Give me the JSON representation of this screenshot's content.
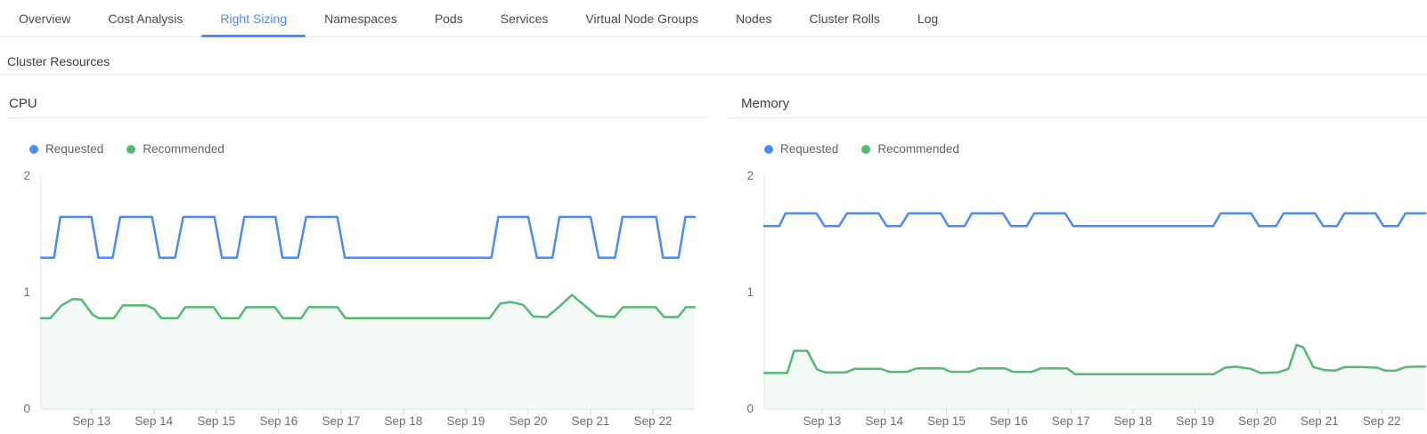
{
  "tabs": [
    {
      "label": "Overview",
      "active": false
    },
    {
      "label": "Cost Analysis",
      "active": false
    },
    {
      "label": "Right Sizing",
      "active": true
    },
    {
      "label": "Namespaces",
      "active": false
    },
    {
      "label": "Pods",
      "active": false
    },
    {
      "label": "Services",
      "active": false
    },
    {
      "label": "Virtual Node Groups",
      "active": false
    },
    {
      "label": "Nodes",
      "active": false
    },
    {
      "label": "Cluster Rolls",
      "active": false
    },
    {
      "label": "Log",
      "active": false
    }
  ],
  "section": {
    "title": "Cluster Resources"
  },
  "colors": {
    "accent_blue": "#4c8bf5",
    "series_blue": "#4c8bf5",
    "series_green": "#55b874",
    "green_area_fill": "rgba(85,184,116,0.07)",
    "axis_line": "#e2e5e9",
    "tick_mark": "#cbcfd4",
    "tick_label": "#6e6e6e",
    "active_tab_text": "#4c8bf5",
    "inactive_tab_text": "#4a4a4a"
  },
  "chart_data": [
    {
      "type": "line",
      "title": "CPU",
      "xlabel": "",
      "ylabel": "",
      "ylim": [
        0,
        2
      ],
      "yticks": [
        0,
        1,
        2
      ],
      "grid": false,
      "legend_position": "top-left",
      "x_domain": [
        12.19,
        22.67
      ],
      "xticks": [
        {
          "day": 13,
          "label": "Sep 13"
        },
        {
          "day": 14,
          "label": "Sep 14"
        },
        {
          "day": 15,
          "label": "Sep 15"
        },
        {
          "day": 16,
          "label": "Sep 16"
        },
        {
          "day": 17,
          "label": "Sep 17"
        },
        {
          "day": 18,
          "label": "Sep 18"
        },
        {
          "day": 19,
          "label": "Sep 19"
        },
        {
          "day": 20,
          "label": "Sep 20"
        },
        {
          "day": 21,
          "label": "Sep 21"
        },
        {
          "day": 22,
          "label": "Sep 22"
        }
      ],
      "series": [
        {
          "name": "Requested",
          "color": "#4c8bf5",
          "points": [
            [
              12.19,
              1.3
            ],
            [
              12.4,
              1.3
            ],
            [
              12.5,
              1.65
            ],
            [
              13.0,
              1.65
            ],
            [
              13.11,
              1.3
            ],
            [
              13.34,
              1.3
            ],
            [
              13.46,
              1.65
            ],
            [
              13.97,
              1.65
            ],
            [
              14.09,
              1.3
            ],
            [
              14.34,
              1.3
            ],
            [
              14.47,
              1.65
            ],
            [
              14.97,
              1.65
            ],
            [
              15.09,
              1.3
            ],
            [
              15.33,
              1.3
            ],
            [
              15.45,
              1.65
            ],
            [
              15.95,
              1.65
            ],
            [
              16.06,
              1.3
            ],
            [
              16.31,
              1.3
            ],
            [
              16.44,
              1.65
            ],
            [
              16.94,
              1.65
            ],
            [
              17.06,
              1.3
            ],
            [
              19.41,
              1.3
            ],
            [
              19.52,
              1.65
            ],
            [
              20.0,
              1.65
            ],
            [
              20.14,
              1.3
            ],
            [
              20.39,
              1.3
            ],
            [
              20.5,
              1.65
            ],
            [
              21.0,
              1.65
            ],
            [
              21.13,
              1.3
            ],
            [
              21.39,
              1.3
            ],
            [
              21.51,
              1.65
            ],
            [
              22.05,
              1.65
            ],
            [
              22.16,
              1.3
            ],
            [
              22.41,
              1.3
            ],
            [
              22.52,
              1.65
            ],
            [
              22.67,
              1.65
            ]
          ]
        },
        {
          "name": "Recommended",
          "color": "#55b874",
          "area_fill": "rgba(85,184,116,0.07)",
          "points": [
            [
              12.19,
              0.78
            ],
            [
              12.34,
              0.78
            ],
            [
              12.52,
              0.89
            ],
            [
              12.7,
              0.945
            ],
            [
              12.84,
              0.94
            ],
            [
              13.02,
              0.81
            ],
            [
              13.12,
              0.78
            ],
            [
              13.36,
              0.78
            ],
            [
              13.5,
              0.89
            ],
            [
              13.88,
              0.89
            ],
            [
              14.0,
              0.86
            ],
            [
              14.12,
              0.78
            ],
            [
              14.38,
              0.78
            ],
            [
              14.5,
              0.875
            ],
            [
              14.96,
              0.875
            ],
            [
              15.08,
              0.78
            ],
            [
              15.36,
              0.78
            ],
            [
              15.48,
              0.875
            ],
            [
              15.94,
              0.875
            ],
            [
              16.07,
              0.78
            ],
            [
              16.36,
              0.78
            ],
            [
              16.48,
              0.875
            ],
            [
              16.94,
              0.875
            ],
            [
              17.07,
              0.78
            ],
            [
              19.38,
              0.78
            ],
            [
              19.55,
              0.905
            ],
            [
              19.72,
              0.92
            ],
            [
              19.92,
              0.895
            ],
            [
              20.08,
              0.795
            ],
            [
              20.3,
              0.79
            ],
            [
              20.52,
              0.89
            ],
            [
              20.7,
              0.98
            ],
            [
              20.88,
              0.9
            ],
            [
              21.1,
              0.8
            ],
            [
              21.38,
              0.79
            ],
            [
              21.52,
              0.875
            ],
            [
              22.04,
              0.875
            ],
            [
              22.18,
              0.79
            ],
            [
              22.4,
              0.79
            ],
            [
              22.53,
              0.875
            ],
            [
              22.67,
              0.875
            ]
          ]
        }
      ]
    },
    {
      "type": "line",
      "title": "Memory",
      "xlabel": "",
      "ylabel": "",
      "ylim": [
        0,
        2
      ],
      "yticks": [
        0,
        1,
        2
      ],
      "grid": false,
      "legend_position": "top-left",
      "x_domain": [
        12.07,
        22.7
      ],
      "xticks": [
        {
          "day": 13,
          "label": "Sep 13"
        },
        {
          "day": 14,
          "label": "Sep 14"
        },
        {
          "day": 15,
          "label": "Sep 15"
        },
        {
          "day": 16,
          "label": "Sep 16"
        },
        {
          "day": 17,
          "label": "Sep 17"
        },
        {
          "day": 18,
          "label": "Sep 18"
        },
        {
          "day": 19,
          "label": "Sep 19"
        },
        {
          "day": 20,
          "label": "Sep 20"
        },
        {
          "day": 21,
          "label": "Sep 21"
        },
        {
          "day": 22,
          "label": "Sep 22"
        }
      ],
      "series": [
        {
          "name": "Requested",
          "color": "#4c8bf5",
          "points": [
            [
              12.07,
              1.57
            ],
            [
              12.31,
              1.57
            ],
            [
              12.41,
              1.68
            ],
            [
              12.91,
              1.68
            ],
            [
              13.04,
              1.57
            ],
            [
              13.27,
              1.57
            ],
            [
              13.4,
              1.68
            ],
            [
              13.91,
              1.68
            ],
            [
              14.04,
              1.57
            ],
            [
              14.26,
              1.57
            ],
            [
              14.39,
              1.68
            ],
            [
              14.91,
              1.68
            ],
            [
              15.03,
              1.57
            ],
            [
              15.29,
              1.57
            ],
            [
              15.41,
              1.68
            ],
            [
              15.91,
              1.68
            ],
            [
              16.04,
              1.57
            ],
            [
              16.29,
              1.57
            ],
            [
              16.41,
              1.68
            ],
            [
              16.91,
              1.68
            ],
            [
              17.04,
              1.57
            ],
            [
              19.29,
              1.57
            ],
            [
              19.41,
              1.68
            ],
            [
              19.9,
              1.68
            ],
            [
              20.03,
              1.57
            ],
            [
              20.3,
              1.57
            ],
            [
              20.42,
              1.68
            ],
            [
              20.93,
              1.68
            ],
            [
              21.06,
              1.57
            ],
            [
              21.28,
              1.57
            ],
            [
              21.4,
              1.68
            ],
            [
              21.9,
              1.68
            ],
            [
              22.03,
              1.57
            ],
            [
              22.26,
              1.57
            ],
            [
              22.38,
              1.68
            ],
            [
              22.7,
              1.68
            ]
          ]
        },
        {
          "name": "Recommended",
          "color": "#55b874",
          "area_fill": "rgba(85,184,116,0.07)",
          "points": [
            [
              12.07,
              0.31
            ],
            [
              12.44,
              0.31
            ],
            [
              12.55,
              0.5
            ],
            [
              12.76,
              0.5
            ],
            [
              12.92,
              0.34
            ],
            [
              13.05,
              0.315
            ],
            [
              13.38,
              0.315
            ],
            [
              13.52,
              0.345
            ],
            [
              13.95,
              0.345
            ],
            [
              14.08,
              0.32
            ],
            [
              14.37,
              0.32
            ],
            [
              14.52,
              0.35
            ],
            [
              14.94,
              0.35
            ],
            [
              15.07,
              0.32
            ],
            [
              15.37,
              0.32
            ],
            [
              15.52,
              0.35
            ],
            [
              15.94,
              0.35
            ],
            [
              16.07,
              0.32
            ],
            [
              16.37,
              0.32
            ],
            [
              16.52,
              0.35
            ],
            [
              16.94,
              0.35
            ],
            [
              17.07,
              0.3
            ],
            [
              19.3,
              0.3
            ],
            [
              19.48,
              0.355
            ],
            [
              19.65,
              0.365
            ],
            [
              19.9,
              0.345
            ],
            [
              20.05,
              0.31
            ],
            [
              20.33,
              0.315
            ],
            [
              20.5,
              0.345
            ],
            [
              20.63,
              0.55
            ],
            [
              20.74,
              0.53
            ],
            [
              20.9,
              0.36
            ],
            [
              21.08,
              0.335
            ],
            [
              21.25,
              0.33
            ],
            [
              21.4,
              0.36
            ],
            [
              21.7,
              0.36
            ],
            [
              21.93,
              0.355
            ],
            [
              22.06,
              0.33
            ],
            [
              22.22,
              0.33
            ],
            [
              22.38,
              0.36
            ],
            [
              22.55,
              0.365
            ],
            [
              22.7,
              0.365
            ]
          ]
        }
      ]
    }
  ]
}
